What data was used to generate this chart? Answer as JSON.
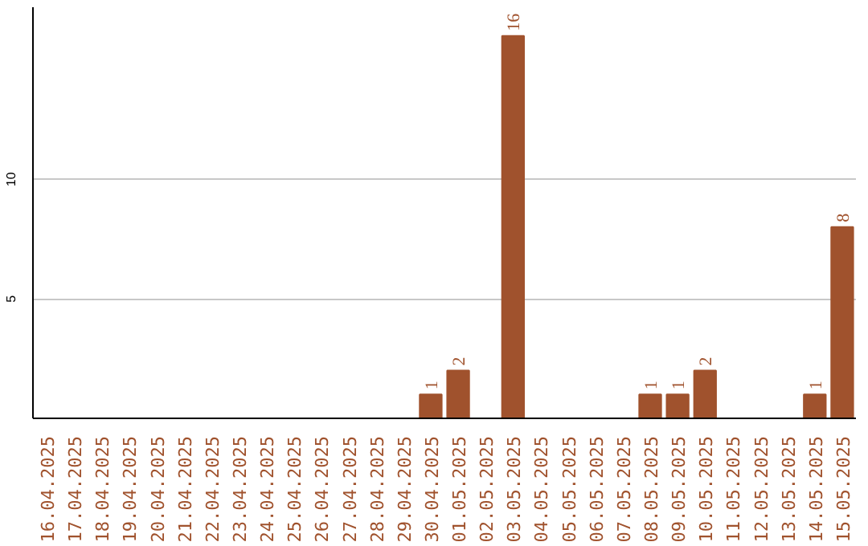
{
  "chart_data": {
    "type": "bar",
    "categories": [
      "16.04.2025",
      "17.04.2025",
      "18.04.2025",
      "19.04.2025",
      "20.04.2025",
      "21.04.2025",
      "22.04.2025",
      "23.04.2025",
      "24.04.2025",
      "25.04.2025",
      "26.04.2025",
      "27.04.2025",
      "28.04.2025",
      "29.04.2025",
      "30.04.2025",
      "01.05.2025",
      "02.05.2025",
      "03.05.2025",
      "04.05.2025",
      "05.05.2025",
      "06.05.2025",
      "07.05.2025",
      "08.05.2025",
      "09.05.2025",
      "10.05.2025",
      "11.05.2025",
      "12.05.2025",
      "13.05.2025",
      "14.05.2025",
      "15.05.2025"
    ],
    "values": [
      null,
      null,
      null,
      null,
      null,
      null,
      null,
      null,
      null,
      null,
      null,
      null,
      null,
      null,
      1,
      2,
      null,
      16,
      null,
      null,
      null,
      null,
      1,
      1,
      2,
      null,
      null,
      null,
      1,
      8
    ],
    "color": "#a0522d",
    "ylim": [
      0,
      17.2
    ],
    "yticks": [
      5,
      10
    ],
    "grid": "y",
    "data_labels": true
  }
}
